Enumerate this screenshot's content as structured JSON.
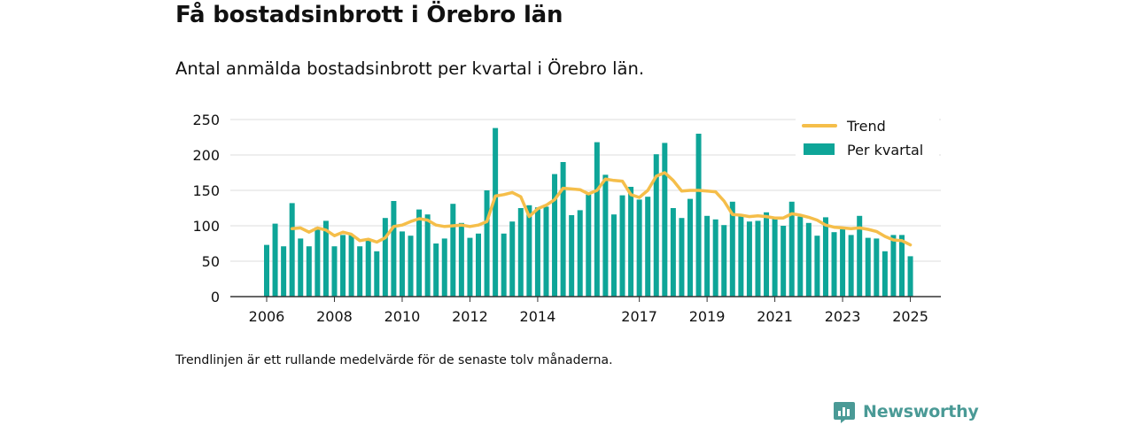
{
  "title": "Få bostadsinbrott i Örebro län",
  "subtitle": "Antal anmälda bostadsinbrott per kvartal i Örebro län.",
  "footnote": "Trendlinjen är ett rullande medelvärde för de senaste tolv månaderna.",
  "brand": {
    "name": "Newsworthy",
    "icon": "newsworthy-logo-icon"
  },
  "colors": {
    "bars": "#0ea598",
    "trend": "#f5be4a",
    "grid": "#dddddd",
    "axis": "#333333",
    "brand": "#4a9a96"
  },
  "chart_data": {
    "type": "bar",
    "title": "",
    "xlabel": "",
    "ylabel": "",
    "ylim": [
      0,
      250
    ],
    "yticks": [
      0,
      50,
      100,
      150,
      200,
      250
    ],
    "xtick_labels": [
      "2006",
      "2008",
      "2010",
      "2012",
      "2014",
      "2017",
      "2019",
      "2021",
      "2023",
      "2025"
    ],
    "grid": true,
    "legend_position": "top-right",
    "categories": [
      "2006 Q1",
      "2006 Q2",
      "2006 Q3",
      "2006 Q4",
      "2007 Q1",
      "2007 Q2",
      "2007 Q3",
      "2007 Q4",
      "2008 Q1",
      "2008 Q2",
      "2008 Q3",
      "2008 Q4",
      "2009 Q1",
      "2009 Q2",
      "2009 Q3",
      "2009 Q4",
      "2010 Q1",
      "2010 Q2",
      "2010 Q3",
      "2010 Q4",
      "2011 Q1",
      "2011 Q2",
      "2011 Q3",
      "2011 Q4",
      "2012 Q1",
      "2012 Q2",
      "2012 Q3",
      "2012 Q4",
      "2013 Q1",
      "2013 Q2",
      "2013 Q3",
      "2013 Q4",
      "2014 Q1",
      "2014 Q2",
      "2014 Q3",
      "2014 Q4",
      "2015 Q1",
      "2015 Q2",
      "2015 Q3",
      "2015 Q4",
      "2016 Q1",
      "2016 Q2",
      "2016 Q3",
      "2016 Q4",
      "2017 Q1",
      "2017 Q2",
      "2017 Q3",
      "2017 Q4",
      "2018 Q1",
      "2018 Q2",
      "2018 Q3",
      "2018 Q4",
      "2019 Q1",
      "2019 Q2",
      "2019 Q3",
      "2019 Q4",
      "2020 Q1",
      "2020 Q2",
      "2020 Q3",
      "2020 Q4",
      "2021 Q1",
      "2021 Q2",
      "2021 Q3",
      "2021 Q4",
      "2022 Q1",
      "2022 Q2",
      "2022 Q3",
      "2022 Q4",
      "2023 Q1",
      "2023 Q2",
      "2023 Q3",
      "2023 Q4",
      "2024 Q1",
      "2024 Q2",
      "2024 Q3",
      "2024 Q4",
      "2025 Q1"
    ],
    "series": [
      {
        "name": "Per kvartal",
        "type": "bar",
        "values": [
          73,
          103,
          71,
          132,
          82,
          71,
          98,
          107,
          71,
          87,
          87,
          71,
          80,
          64,
          111,
          135,
          92,
          86,
          123,
          116,
          75,
          82,
          131,
          104,
          83,
          89,
          150,
          238,
          89,
          106,
          125,
          129,
          126,
          127,
          173,
          190,
          115,
          122,
          144,
          218,
          172,
          116,
          143,
          155,
          137,
          141,
          201,
          217,
          125,
          111,
          138,
          230,
          114,
          109,
          101,
          134,
          116,
          106,
          107,
          119,
          112,
          100,
          134,
          113,
          104,
          86,
          112,
          91,
          95,
          87,
          114,
          83,
          82,
          64,
          87,
          87,
          57
        ]
      },
      {
        "name": "Trend",
        "type": "line",
        "values": [
          null,
          null,
          null,
          96,
          97,
          91,
          97,
          94,
          86,
          91,
          88,
          79,
          81,
          77,
          83,
          99,
          101,
          106,
          110,
          108,
          101,
          99,
          100,
          101,
          99,
          101,
          106,
          142,
          144,
          147,
          141,
          113,
          124,
          129,
          137,
          153,
          152,
          151,
          145,
          150,
          166,
          164,
          163,
          144,
          140,
          150,
          170,
          175,
          164,
          149,
          150,
          150,
          149,
          148,
          135,
          116,
          115,
          113,
          114,
          113,
          111,
          111,
          117,
          115,
          112,
          108,
          101,
          98,
          97,
          96,
          97,
          95,
          92,
          85,
          80,
          79,
          73
        ]
      }
    ]
  }
}
